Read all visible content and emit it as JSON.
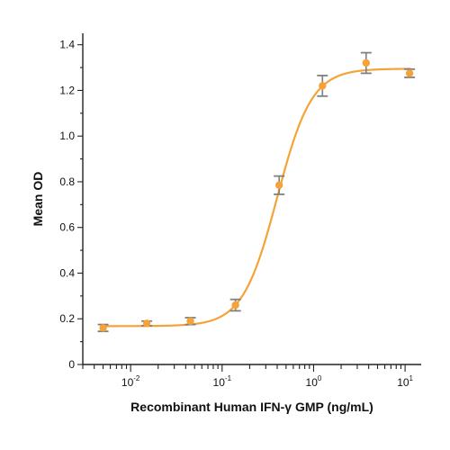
{
  "chart_data": {
    "type": "scatter",
    "xscale": "log",
    "xlabel": "Recombinant Human IFN-γ GMP (ng/mL)",
    "ylabel": "Mean OD",
    "xlim": [
      0.003,
      15
    ],
    "ylim": [
      0,
      1.45
    ],
    "x_tick_labels": [
      {
        "value": 0.01,
        "base": "10",
        "exp": "-2"
      },
      {
        "value": 0.1,
        "base": "10",
        "exp": "-1"
      },
      {
        "value": 1,
        "base": "10",
        "exp": "0"
      },
      {
        "value": 10,
        "base": "10",
        "exp": "1"
      }
    ],
    "y_ticks": [
      "0",
      "0.2",
      "0.4",
      "0.6",
      "0.8",
      "1.0",
      "1.2",
      "1.4"
    ],
    "points": [
      {
        "x": 0.005,
        "y": 0.16,
        "err": 0.015
      },
      {
        "x": 0.015,
        "y": 0.18,
        "err": 0.01
      },
      {
        "x": 0.045,
        "y": 0.19,
        "err": 0.015
      },
      {
        "x": 0.14,
        "y": 0.26,
        "err": 0.025
      },
      {
        "x": 0.42,
        "y": 0.785,
        "err": 0.04
      },
      {
        "x": 1.25,
        "y": 1.22,
        "err": 0.045
      },
      {
        "x": 3.75,
        "y": 1.32,
        "err": 0.045
      },
      {
        "x": 11.2,
        "y": 1.275,
        "err": 0.018
      }
    ],
    "fit": {
      "model": "4PL",
      "bottom": 0.168,
      "top": 1.295,
      "ec50": 0.4,
      "hill": 2.3
    },
    "colors": {
      "marker": "#f5a338",
      "curve": "#f5a338",
      "error_bar": "#808080",
      "axis": "#222222"
    }
  }
}
